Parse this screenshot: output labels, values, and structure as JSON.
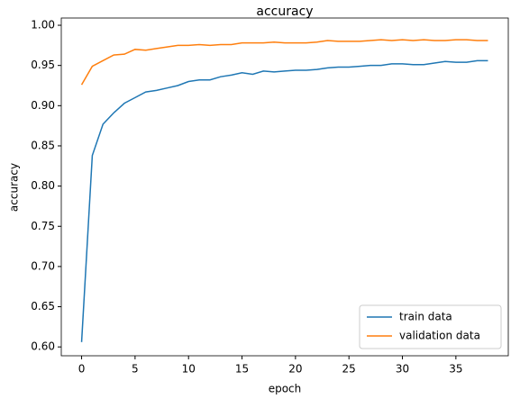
{
  "chart_data": {
    "type": "line",
    "title": "accuracy",
    "x_label": "epoch",
    "y_label": "accuracy",
    "x": [
      0,
      1,
      2,
      3,
      4,
      5,
      6,
      7,
      8,
      9,
      10,
      11,
      12,
      13,
      14,
      15,
      16,
      17,
      18,
      19,
      20,
      21,
      22,
      23,
      24,
      25,
      26,
      27,
      28,
      29,
      30,
      31,
      32,
      33,
      34,
      35,
      36,
      37,
      38
    ],
    "series": [
      {
        "name": "train data",
        "color": "#1f77b4",
        "values": [
          0.606,
          0.838,
          0.877,
          0.891,
          0.903,
          0.91,
          0.917,
          0.919,
          0.922,
          0.925,
          0.93,
          0.932,
          0.932,
          0.936,
          0.938,
          0.941,
          0.939,
          0.943,
          0.942,
          0.943,
          0.944,
          0.944,
          0.945,
          0.947,
          0.948,
          0.948,
          0.949,
          0.95,
          0.95,
          0.952,
          0.952,
          0.951,
          0.951,
          0.953,
          0.955,
          0.954,
          0.954,
          0.956,
          0.956
        ]
      },
      {
        "name": "validation data",
        "color": "#ff7f0e",
        "values": [
          0.926,
          0.949,
          0.956,
          0.963,
          0.964,
          0.97,
          0.969,
          0.971,
          0.973,
          0.975,
          0.975,
          0.976,
          0.975,
          0.976,
          0.976,
          0.978,
          0.978,
          0.978,
          0.979,
          0.978,
          0.978,
          0.978,
          0.979,
          0.981,
          0.98,
          0.98,
          0.98,
          0.981,
          0.982,
          0.981,
          0.982,
          0.981,
          0.982,
          0.981,
          0.981,
          0.982,
          0.982,
          0.981,
          0.981
        ]
      }
    ],
    "xlim": [
      -1.9,
      39.9
    ],
    "xticks": [
      0,
      5,
      10,
      15,
      20,
      25,
      30,
      35
    ],
    "ylim": [
      0.589,
      1.009
    ],
    "yticks": [
      {
        "value": 0.6,
        "label": "0.60"
      },
      {
        "value": 0.65,
        "label": "0.65"
      },
      {
        "value": 0.7,
        "label": "0.70"
      },
      {
        "value": 0.75,
        "label": "0.75"
      },
      {
        "value": 0.8,
        "label": "0.80"
      },
      {
        "value": 0.85,
        "label": "0.85"
      },
      {
        "value": 0.9,
        "label": "0.90"
      },
      {
        "value": 0.95,
        "label": "0.95"
      },
      {
        "value": 1.0,
        "label": "1.00"
      }
    ],
    "legend": "lower right",
    "grid": false
  }
}
